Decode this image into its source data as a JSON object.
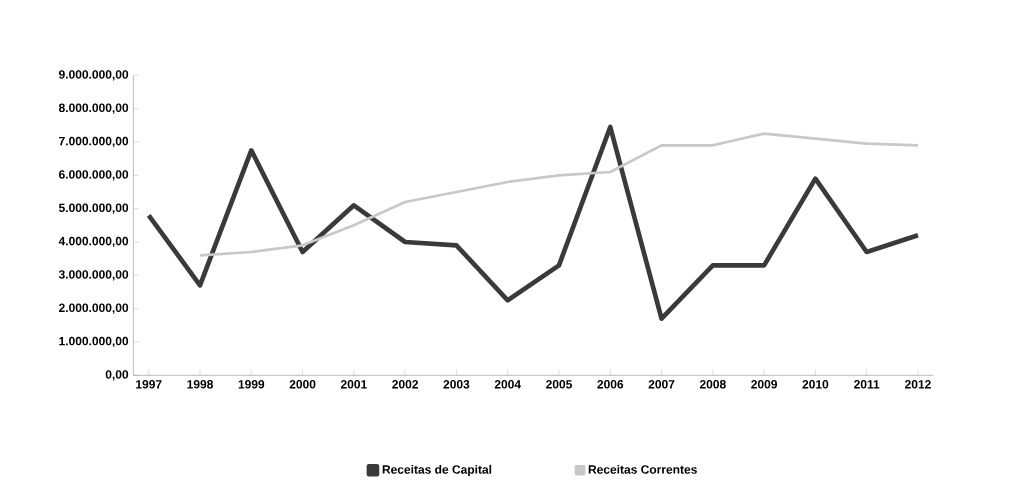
{
  "chart_data": {
    "type": "line",
    "categories": [
      "1997",
      "1998",
      "1999",
      "2000",
      "2001",
      "2002",
      "2003",
      "2004",
      "2005",
      "2006",
      "2007",
      "2008",
      "2009",
      "2010",
      "2011",
      "2012"
    ],
    "series": [
      {
        "name": "Receitas de Capital",
        "color": "#3a3a3a",
        "values": [
          4800000,
          2700000,
          6750000,
          3700000,
          5100000,
          4000000,
          3900000,
          2250000,
          3300000,
          7450000,
          1700000,
          3300000,
          3300000,
          5900000,
          3700000,
          4200000
        ]
      },
      {
        "name": "Receitas Correntes",
        "color": "#c8c8c8",
        "values": [
          null,
          3600000,
          3700000,
          3900000,
          4500000,
          5200000,
          5500000,
          5800000,
          6000000,
          6100000,
          6900000,
          6900000,
          7250000,
          7100000,
          6950000,
          6900000
        ]
      }
    ],
    "ylim": [
      0,
      9000000
    ],
    "yticks": [
      {
        "value": 0,
        "label": "0,00"
      },
      {
        "value": 1000000,
        "label": "1.000.000,00"
      },
      {
        "value": 2000000,
        "label": "2.000.000,00"
      },
      {
        "value": 3000000,
        "label": "3.000.000,00"
      },
      {
        "value": 4000000,
        "label": "4.000.000,00"
      },
      {
        "value": 5000000,
        "label": "5.000.000,00"
      },
      {
        "value": 6000000,
        "label": "6.000.000,00"
      },
      {
        "value": 7000000,
        "label": "7.000.000,00"
      },
      {
        "value": 8000000,
        "label": "8.000.000,00"
      },
      {
        "value": 9000000,
        "label": "9.000.000,00"
      }
    ],
    "legend": "bottom",
    "marker": "none",
    "line_style": "solid"
  }
}
